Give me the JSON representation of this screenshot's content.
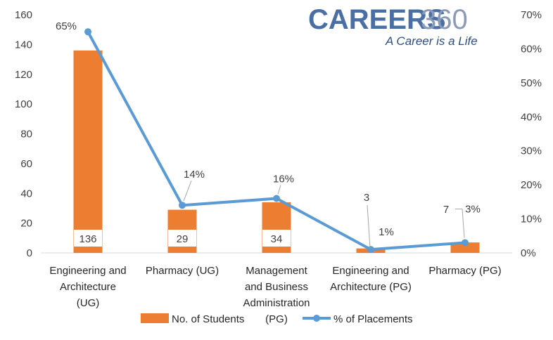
{
  "logo": {
    "main": "CAREERS",
    "number": "360",
    "tagline": "A Career is a Life"
  },
  "chart_data": {
    "type": "bar",
    "categories": [
      [
        "Engineering and",
        "Architecture",
        "(UG)"
      ],
      [
        "Pharmacy (UG)"
      ],
      [
        "Management",
        "and Business",
        "Administration",
        "(PG)"
      ],
      [
        "Engineering and",
        "Architecture (PG)"
      ],
      [
        "Pharmacy (PG)"
      ]
    ],
    "series": [
      {
        "name": "No. of Students",
        "type": "bar",
        "axis": "left",
        "values": [
          136,
          29,
          34,
          3,
          7
        ],
        "labels": [
          "136",
          "29",
          "34",
          "3",
          "7"
        ],
        "color": "#ed7d31"
      },
      {
        "name": "% of Placements",
        "type": "line",
        "axis": "right",
        "values": [
          65,
          14,
          16,
          1,
          3
        ],
        "labels": [
          "65%",
          "14%",
          "16%",
          "1%",
          "3%"
        ],
        "color": "#5b9bd5"
      }
    ],
    "y_left": {
      "min": 0,
      "max": 160,
      "ticks": [
        "0",
        "20",
        "40",
        "60",
        "80",
        "100",
        "120",
        "140",
        "160"
      ]
    },
    "y_right": {
      "min": 0,
      "max": 70,
      "ticks": [
        "0%",
        "10%",
        "20%",
        "30%",
        "40%",
        "50%",
        "60%",
        "70%"
      ]
    },
    "grid": false,
    "legend_position": "bottom"
  }
}
